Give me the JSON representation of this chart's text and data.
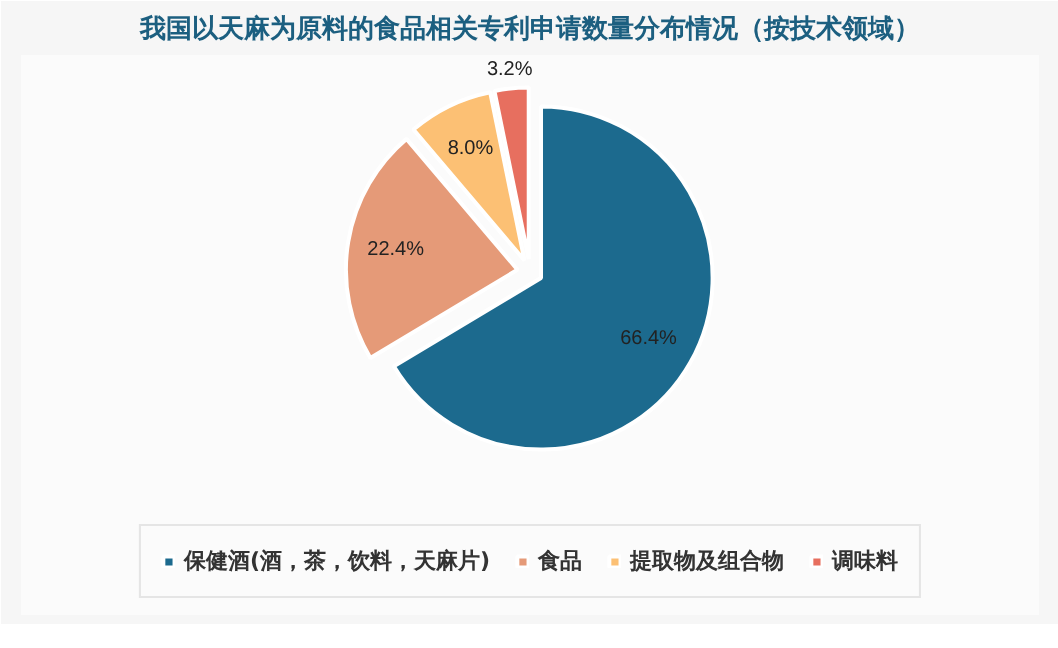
{
  "chart_data": {
    "type": "pie",
    "title": "我国以天麻为原料的食品相关专利申请数量分布情况（按技术领域）",
    "categories": [
      "保健酒(酒，茶，饮料，天麻片)",
      "食品",
      "提取物及组合物",
      "调味料"
    ],
    "values": [
      66.4,
      22.4,
      8.0,
      3.2
    ],
    "colors": [
      "#1c6a8e",
      "#e59a78",
      "#fcc074",
      "#e76f5f"
    ],
    "value_labels": [
      "66.4%",
      "22.4%",
      "8.0%",
      "3.2%"
    ],
    "legend": "bottom"
  }
}
